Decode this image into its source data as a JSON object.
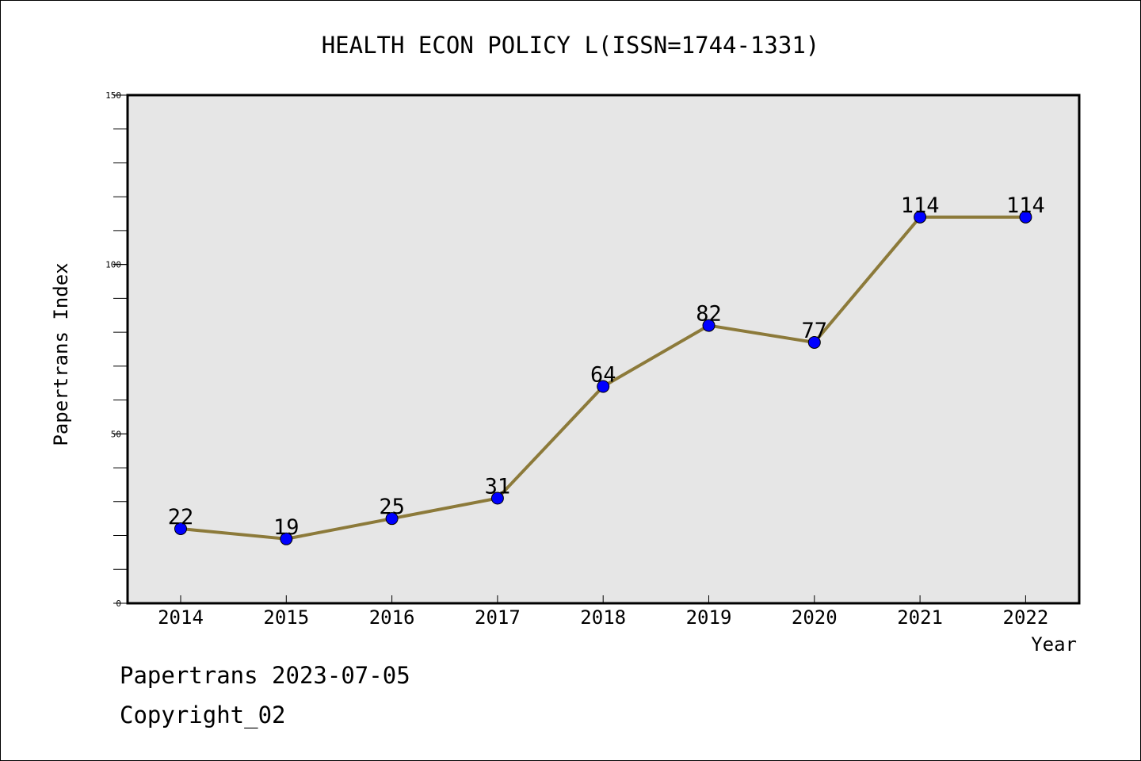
{
  "chart_data": {
    "type": "line",
    "title": "HEALTH ECON POLICY L(ISSN=1744-1331)",
    "xlabel": "Year",
    "ylabel": "Papertrans Index",
    "categories": [
      "2014",
      "2015",
      "2016",
      "2017",
      "2018",
      "2019",
      "2020",
      "2021",
      "2022"
    ],
    "series": [
      {
        "values": [
          22,
          19,
          25,
          31,
          64,
          82,
          77,
          114,
          114
        ],
        "labels": [
          "22",
          "19",
          "25",
          "31",
          "64",
          "82",
          "77",
          "114",
          "114"
        ]
      }
    ],
    "ylim": [
      0,
      150
    ],
    "yticks": [
      0,
      50,
      100,
      150
    ],
    "ytick_labels": [
      "0",
      "50",
      "100",
      "150"
    ],
    "y_minor_step": 10,
    "grid": false,
    "line_color": "#8c7a3a",
    "marker_color": "#0000ff",
    "plot_background": "#e6e6e6"
  },
  "footer": {
    "source_date": "Papertrans 2023-07-05",
    "copyright": "Copyright_02"
  }
}
